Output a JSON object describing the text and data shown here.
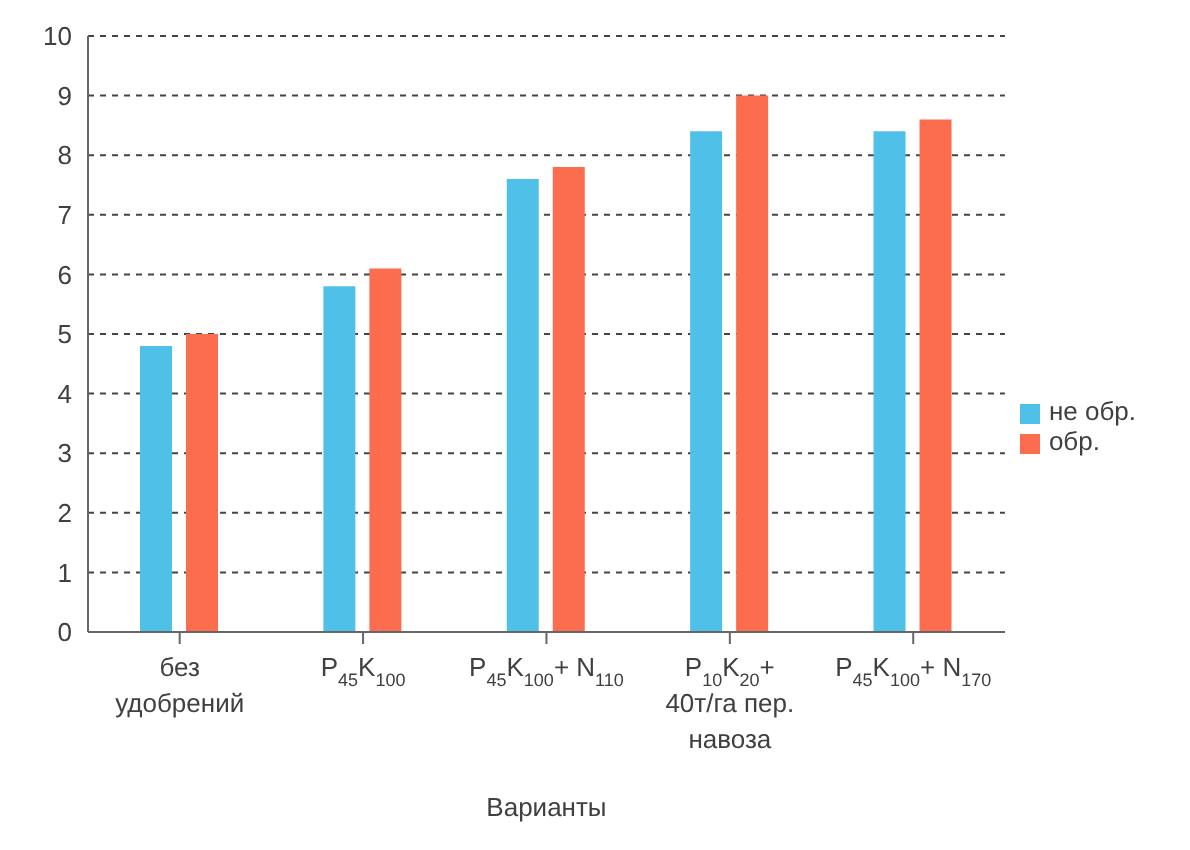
{
  "chart_data": {
    "type": "bar",
    "xlabel": "Варианты",
    "categories": [
      "без удобрений",
      "P$_{45}$K$_{100}$",
      "P$_{45}$K$_{100}$+ N$_{110}$",
      "P$_{10}$K$_{20}$+ 40т/га пер. навоза",
      "P$_{45}$K$_{100}$+ N$_{170}$"
    ],
    "series": [
      {
        "name": "не обр.",
        "color": "#4fc0e8",
        "values": [
          4.8,
          5.8,
          7.6,
          8.4,
          8.4
        ]
      },
      {
        "name": "обр.",
        "color": "#fc6d4f",
        "values": [
          5.0,
          6.1,
          7.8,
          9.0,
          8.6
        ]
      }
    ],
    "ylim": [
      0,
      10
    ],
    "yticks": [
      0,
      1,
      2,
      3,
      4,
      5,
      6,
      7,
      8,
      9,
      10
    ],
    "grid": "y",
    "legend": "right"
  }
}
